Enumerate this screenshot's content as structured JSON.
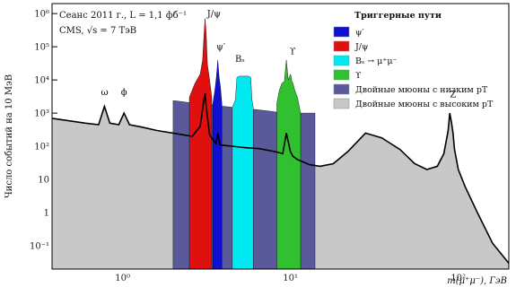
{
  "chart_data": {
    "type": "area",
    "info_lines": [
      "Сеанс 2011 г., L = 1,1 фб⁻¹",
      "CMS, √s = 7 ТэВ"
    ],
    "xlabel": "m(μ⁺μ⁻), ГэВ",
    "ylabel": "Число событий на 10 МэВ",
    "x_scale": "log",
    "y_scale": "log",
    "xlim": [
      0.38,
      200
    ],
    "ylim": [
      0.02,
      2000000
    ],
    "x_ticks": [
      {
        "value": 1,
        "label": "10⁰"
      },
      {
        "value": 10,
        "label": "10¹"
      },
      {
        "value": 100,
        "label": "10²"
      }
    ],
    "y_ticks": [
      {
        "value": 0.1,
        "label": "10⁻¹"
      },
      {
        "value": 1,
        "label": "1"
      },
      {
        "value": 10,
        "label": "10"
      },
      {
        "value": 100,
        "label": "10²"
      },
      {
        "value": 1000,
        "label": "10³"
      },
      {
        "value": 10000,
        "label": "10⁴"
      },
      {
        "value": 100000,
        "label": "10⁵"
      },
      {
        "value": 1000000,
        "label": "10⁶"
      }
    ],
    "legend_title": "Триггерные пути",
    "legend_position": "top-right",
    "series": [
      {
        "name": "Двойные мюоны с высоким pT",
        "color": "#c8c8c8",
        "x": [
          0.38,
          0.6,
          0.72,
          0.78,
          0.84,
          0.95,
          1.02,
          1.1,
          1.3,
          1.6,
          2.0,
          2.6,
          2.9,
          3.05,
          3.1,
          3.15,
          3.3,
          3.6,
          3.69,
          3.8,
          4.5,
          5.0,
          5.5,
          6.5,
          8.0,
          9.0,
          9.46,
          10.0,
          10.35,
          11.0,
          13.0,
          15.0,
          18.0,
          22.0,
          28.0,
          35.0,
          45.0,
          55.0,
          65.0,
          75.0,
          82.0,
          87.0,
          89.0,
          91.2,
          93.0,
          95.0,
          100.0,
          110.0,
          130.0,
          160.0,
          200.0
        ],
        "y": [
          700,
          500,
          450,
          1600,
          500,
          450,
          1000,
          450,
          380,
          300,
          250,
          200,
          400,
          2500,
          4000,
          1500,
          220,
          120,
          250,
          110,
          100,
          95,
          90,
          85,
          70,
          60,
          250,
          70,
          50,
          40,
          28,
          25,
          30,
          70,
          250,
          180,
          80,
          30,
          20,
          25,
          60,
          300,
          1000,
          500,
          250,
          80,
          20,
          6,
          1,
          0.12,
          0.03
        ]
      },
      {
        "name": "Двойные мюоны с низким pT",
        "color": "#5a5a9a",
        "x": [
          2.0,
          2.3,
          2.6,
          2.9,
          3.1,
          3.4,
          3.7,
          4.0,
          4.5,
          5.0,
          6.0,
          7.0,
          8.0,
          9.0,
          10.0,
          11.0,
          12.0,
          13.0,
          14.0
        ],
        "y": [
          2400,
          2200,
          2000,
          1900,
          2000,
          1800,
          1700,
          1600,
          1500,
          1400,
          1300,
          1200,
          1100,
          1000,
          1000,
          1000,
          1000,
          1000,
          1000
        ]
      },
      {
        "name": "ψ′",
        "color": "#1010d0",
        "x": [
          3.45,
          3.55,
          3.62,
          3.69,
          3.76,
          3.83,
          3.9
        ],
        "y": [
          2000,
          5000,
          12000,
          40000,
          12000,
          6000,
          2000
        ]
      },
      {
        "name": "J/ψ",
        "color": "#e01010",
        "x": [
          2.5,
          2.7,
          2.9,
          3.0,
          3.05,
          3.1,
          3.15,
          3.2,
          3.3,
          3.4
        ],
        "y": [
          3000,
          8000,
          15000,
          40000,
          200000,
          700000,
          250000,
          30000,
          10000,
          3000
        ]
      },
      {
        "name": "Bₛ → μ⁺μ⁻",
        "color": "#00e8f0",
        "x": [
          4.5,
          4.7,
          4.8,
          5.0,
          5.3,
          5.6,
          5.8,
          5.9,
          6.0
        ],
        "y": [
          1500,
          2500,
          12000,
          13000,
          13000,
          13000,
          12000,
          2500,
          1500
        ]
      },
      {
        "name": "ϒ",
        "color": "#30c030",
        "x": [
          8.3,
          8.6,
          8.9,
          9.2,
          9.46,
          9.7,
          10.02,
          10.2,
          10.35,
          10.6,
          11.0,
          11.5
        ],
        "y": [
          2000,
          5000,
          8000,
          9000,
          40000,
          10000,
          15000,
          9000,
          8000,
          5000,
          3000,
          1000
        ]
      }
    ],
    "annotations": [
      {
        "text": "ω",
        "x": 0.782,
        "y": 3500
      },
      {
        "text": "ϕ",
        "x": 1.02,
        "y": 3500
      },
      {
        "text": "J/ψ",
        "x": 3.5,
        "y": 800000
      },
      {
        "text": "ψ′",
        "x": 3.85,
        "y": 80000
      },
      {
        "text": "Bₛ",
        "x": 5.0,
        "y": 35000
      },
      {
        "text": "ϒ",
        "x": 10.3,
        "y": 60000
      },
      {
        "text": "Z",
        "x": 93.0,
        "y": 3000
      }
    ]
  }
}
